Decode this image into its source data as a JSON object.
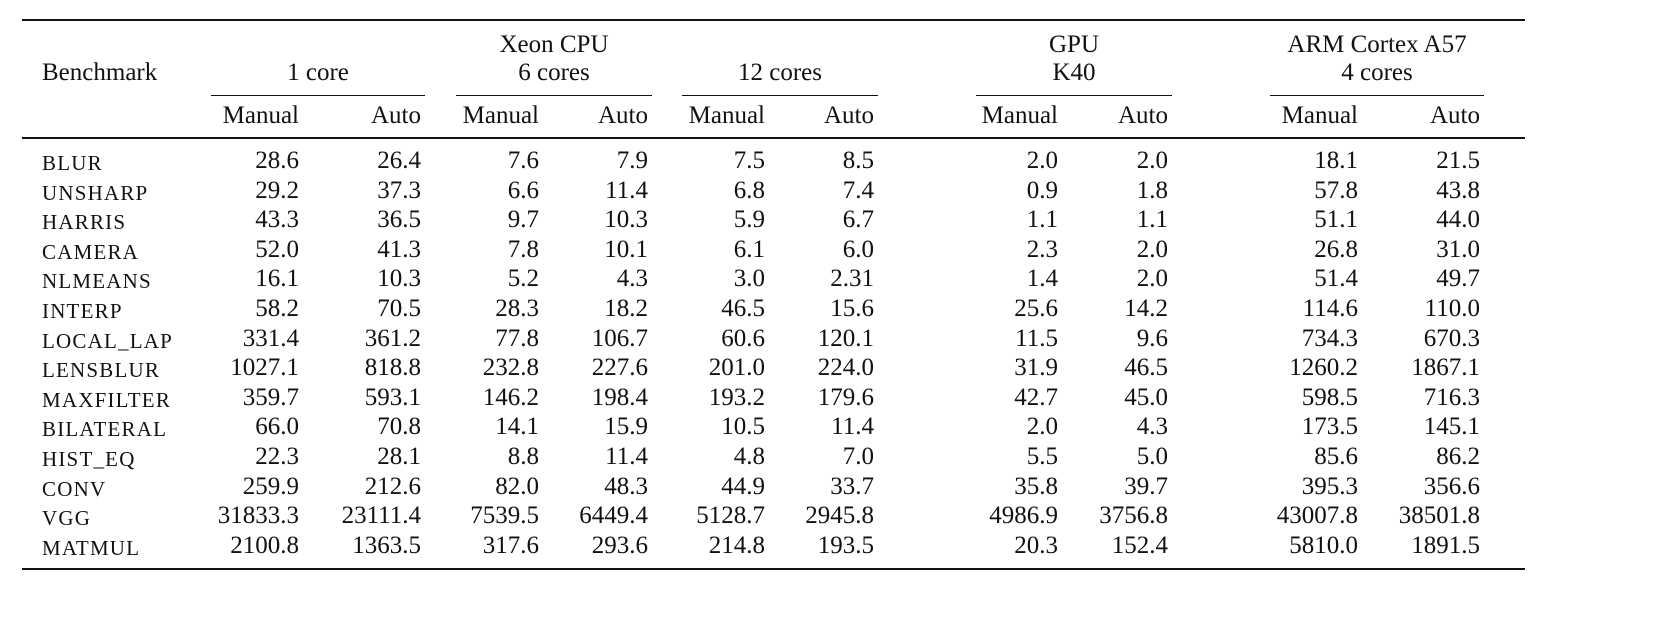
{
  "table": {
    "benchmark_header": "Benchmark",
    "groups": [
      {
        "line1": "Xeon CPU",
        "line2": ""
      },
      {
        "line1": "GPU",
        "line2": "K40"
      },
      {
        "line1": "ARM Cortex A57",
        "line2": "4 cores"
      }
    ],
    "xeon_subgroups": [
      "1 core",
      "6 cores",
      "12 cores"
    ],
    "col_labels": [
      "Manual",
      "Auto",
      "Manual",
      "Auto",
      "Manual",
      "Auto",
      "Manual",
      "Auto",
      "Manual",
      "Auto"
    ],
    "rows": [
      {
        "name": "BLUR",
        "values": [
          "28.6",
          "26.4",
          "7.6",
          "7.9",
          "7.5",
          "8.5",
          "2.0",
          "2.0",
          "18.1",
          "21.5"
        ]
      },
      {
        "name": "UNSHARP",
        "values": [
          "29.2",
          "37.3",
          "6.6",
          "11.4",
          "6.8",
          "7.4",
          "0.9",
          "1.8",
          "57.8",
          "43.8"
        ]
      },
      {
        "name": "HARRIS",
        "values": [
          "43.3",
          "36.5",
          "9.7",
          "10.3",
          "5.9",
          "6.7",
          "1.1",
          "1.1",
          "51.1",
          "44.0"
        ]
      },
      {
        "name": "CAMERA",
        "values": [
          "52.0",
          "41.3",
          "7.8",
          "10.1",
          "6.1",
          "6.0",
          "2.3",
          "2.0",
          "26.8",
          "31.0"
        ]
      },
      {
        "name": "NLMEANS",
        "values": [
          "16.1",
          "10.3",
          "5.2",
          "4.3",
          "3.0",
          "2.31",
          "1.4",
          "2.0",
          "51.4",
          "49.7"
        ]
      },
      {
        "name": "INTERP",
        "values": [
          "58.2",
          "70.5",
          "28.3",
          "18.2",
          "46.5",
          "15.6",
          "25.6",
          "14.2",
          "114.6",
          "110.0"
        ]
      },
      {
        "name": "LOCAL_LAP",
        "values": [
          "331.4",
          "361.2",
          "77.8",
          "106.7",
          "60.6",
          "120.1",
          "11.5",
          "9.6",
          "734.3",
          "670.3"
        ]
      },
      {
        "name": "LENSBLUR",
        "values": [
          "1027.1",
          "818.8",
          "232.8",
          "227.6",
          "201.0",
          "224.0",
          "31.9",
          "46.5",
          "1260.2",
          "1867.1"
        ]
      },
      {
        "name": "MAXFILTER",
        "values": [
          "359.7",
          "593.1",
          "146.2",
          "198.4",
          "193.2",
          "179.6",
          "42.7",
          "45.0",
          "598.5",
          "716.3"
        ]
      },
      {
        "name": "BILATERAL",
        "values": [
          "66.0",
          "70.8",
          "14.1",
          "15.9",
          "10.5",
          "11.4",
          "2.0",
          "4.3",
          "173.5",
          "145.1"
        ]
      },
      {
        "name": "HIST_EQ",
        "values": [
          "22.3",
          "28.1",
          "8.8",
          "11.4",
          "4.8",
          "7.0",
          "5.5",
          "5.0",
          "85.6",
          "86.2"
        ]
      },
      {
        "name": "CONV",
        "values": [
          "259.9",
          "212.6",
          "82.0",
          "48.3",
          "44.9",
          "33.7",
          "35.8",
          "39.7",
          "395.3",
          "356.6"
        ]
      },
      {
        "name": "VGG",
        "values": [
          "31833.3",
          "23111.4",
          "7539.5",
          "6449.4",
          "5128.7",
          "2945.8",
          "4986.9",
          "3756.8",
          "43007.8",
          "38501.8"
        ]
      },
      {
        "name": "MATMUL",
        "values": [
          "2100.8",
          "1363.5",
          "317.6",
          "293.6",
          "214.8",
          "193.5",
          "20.3",
          "152.4",
          "5810.0",
          "1891.5"
        ]
      }
    ]
  }
}
